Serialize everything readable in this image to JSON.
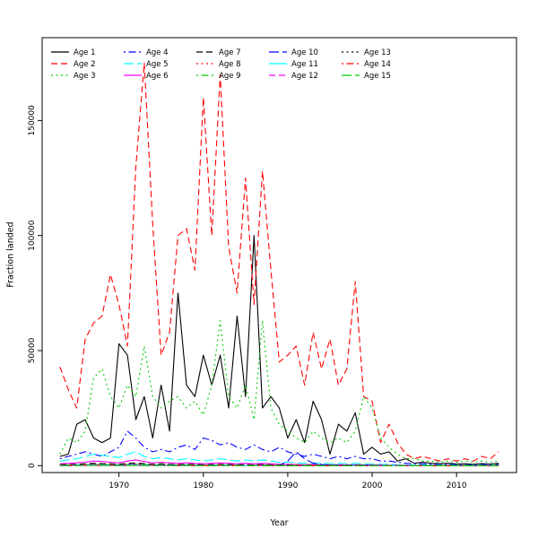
{
  "chart_data": {
    "type": "line",
    "xlabel": "Year",
    "ylabel": "Fraction landed",
    "xlim": [
      1960.9,
      2017.1
    ],
    "ylim": [
      -3000,
      186000
    ],
    "x_ticks": [
      1970,
      1980,
      1990,
      2000,
      2010
    ],
    "y_ticks": [
      0,
      50000,
      100000,
      150000
    ],
    "grid": false,
    "legend_position": "top-left",
    "legend_columns": 5,
    "x": [
      1963,
      1964,
      1965,
      1966,
      1967,
      1968,
      1969,
      1970,
      1971,
      1972,
      1973,
      1974,
      1975,
      1976,
      1977,
      1978,
      1979,
      1980,
      1981,
      1982,
      1983,
      1984,
      1985,
      1986,
      1987,
      1988,
      1989,
      1990,
      1991,
      1992,
      1993,
      1994,
      1995,
      1996,
      1997,
      1998,
      1999,
      2000,
      2001,
      2002,
      2003,
      2004,
      2005,
      2006,
      2007,
      2008,
      2009,
      2010,
      2011,
      2012,
      2013,
      2014,
      2015
    ],
    "series": [
      {
        "name": "Age 1",
        "color": "#000000",
        "linestyle": "solid",
        "values": [
          4000,
          5000,
          18000,
          20000,
          12000,
          10000,
          12000,
          53000,
          48000,
          20000,
          30000,
          12000,
          35000,
          15000,
          75000,
          35000,
          30000,
          48000,
          35000,
          48000,
          25000,
          65000,
          30000,
          100000,
          25000,
          30000,
          25000,
          12000,
          20000,
          10000,
          28000,
          20000,
          5000,
          18000,
          15000,
          23000,
          5000,
          8000,
          5000,
          6000,
          2000,
          3000,
          1000,
          1500,
          1000,
          800,
          1000,
          700,
          800,
          600,
          900,
          700,
          1000
        ]
      },
      {
        "name": "Age 2",
        "color": "#FF0000",
        "linestyle": "dashed",
        "values": [
          43000,
          33000,
          25000,
          55000,
          62000,
          65000,
          83000,
          70000,
          52000,
          130000,
          175000,
          105000,
          48000,
          58000,
          100000,
          103000,
          85000,
          160000,
          100000,
          170000,
          95000,
          75000,
          125000,
          70000,
          128000,
          85000,
          45000,
          48000,
          52000,
          35000,
          58000,
          42000,
          55000,
          35000,
          42000,
          80000,
          30000,
          28000,
          10000,
          18000,
          10000,
          5000,
          3000,
          4000,
          3000,
          2000,
          3000,
          2000,
          3000,
          2000,
          4000,
          3000,
          6000
        ]
      },
      {
        "name": "Age 3",
        "color": "#00CD00",
        "linestyle": "dotted",
        "values": [
          5000,
          12000,
          10000,
          15000,
          38000,
          42000,
          30000,
          25000,
          35000,
          30000,
          52000,
          30000,
          25000,
          28000,
          30000,
          25000,
          28000,
          22000,
          35000,
          63000,
          30000,
          25000,
          35000,
          20000,
          63000,
          25000,
          18000,
          15000,
          12000,
          10000,
          15000,
          12000,
          10000,
          12000,
          10000,
          15000,
          30000,
          25000,
          12000,
          8000,
          5000,
          3000,
          3000,
          2000,
          2000,
          1500,
          2000,
          1500,
          2000,
          1500,
          2000,
          1500,
          2000
        ]
      },
      {
        "name": "Age 4",
        "color": "#0000FF",
        "linestyle": "dotdash",
        "values": [
          3000,
          4000,
          5000,
          6000,
          5000,
          4000,
          6000,
          8000,
          15000,
          12000,
          8000,
          6000,
          7000,
          6000,
          8000,
          9000,
          7000,
          12000,
          11000,
          9000,
          10000,
          8000,
          7000,
          9000,
          7000,
          6000,
          8000,
          6000,
          5000,
          4000,
          5000,
          4000,
          3000,
          4000,
          3000,
          4000,
          3000,
          3000,
          2000,
          2000,
          1500,
          1000,
          800,
          800,
          600,
          600,
          500,
          500,
          400,
          400,
          500,
          400,
          500
        ]
      },
      {
        "name": "Age 5",
        "color": "#00FFFF",
        "linestyle": "longdash",
        "values": [
          2000,
          2500,
          3000,
          4000,
          5000,
          4500,
          4000,
          3500,
          5000,
          6000,
          4000,
          3000,
          3500,
          3000,
          2500,
          3000,
          2500,
          2000,
          2500,
          3000,
          2500,
          2000,
          2500,
          2000,
          2500,
          2000,
          1500,
          1500,
          1200,
          1000,
          1200,
          1000,
          800,
          1000,
          800,
          1000,
          800,
          700,
          600,
          500,
          400,
          350,
          300,
          300,
          250,
          250,
          200,
          200,
          200,
          200,
          200,
          200,
          200
        ]
      },
      {
        "name": "Age 6",
        "color": "#FF00FF",
        "linestyle": "solid",
        "values": [
          800,
          1000,
          1200,
          1500,
          2000,
          1800,
          1500,
          1200,
          2000,
          2500,
          1800,
          1200,
          1500,
          1200,
          1000,
          1200,
          1000,
          800,
          1000,
          1200,
          1000,
          800,
          1000,
          800,
          1000,
          800,
          600,
          600,
          500,
          400,
          500,
          400,
          350,
          400,
          350,
          400,
          350,
          300,
          250,
          200,
          180,
          150,
          130,
          130,
          110,
          110,
          100,
          100,
          90,
          90,
          90,
          90,
          90
        ]
      },
      {
        "name": "Age 7",
        "color": "#000000",
        "linestyle": "dashed",
        "values": [
          400,
          500,
          600,
          800,
          1000,
          900,
          800,
          600,
          1000,
          1200,
          900,
          600,
          800,
          600,
          500,
          600,
          500,
          400,
          500,
          600,
          500,
          400,
          500,
          400,
          500,
          400,
          300,
          300,
          250,
          200,
          250,
          200,
          180,
          200,
          180,
          200,
          180,
          150,
          130,
          100,
          90,
          80,
          70,
          70,
          60,
          60,
          50,
          50,
          50,
          50,
          50,
          50,
          50
        ]
      },
      {
        "name": "Age 8",
        "color": "#FF0000",
        "linestyle": "dotted",
        "values": [
          300,
          350,
          400,
          500,
          700,
          600,
          500,
          400,
          700,
          800,
          600,
          400,
          500,
          400,
          350,
          400,
          350,
          300,
          350,
          400,
          350,
          300,
          350,
          300,
          350,
          300,
          250,
          250,
          200,
          150,
          200,
          150,
          130,
          150,
          130,
          150,
          130,
          110,
          100,
          80,
          70,
          60,
          50,
          50,
          45,
          45,
          40,
          40,
          40,
          40,
          40,
          40,
          40
        ]
      },
      {
        "name": "Age 9",
        "color": "#00CD00",
        "linestyle": "dotdash",
        "values": [
          200,
          250,
          300,
          400,
          500,
          450,
          400,
          300,
          500,
          600,
          450,
          300,
          400,
          300,
          250,
          300,
          250,
          200,
          250,
          300,
          250,
          200,
          250,
          200,
          250,
          200,
          150,
          150,
          120,
          100,
          120,
          100,
          90,
          100,
          90,
          100,
          90,
          80,
          70,
          60,
          50,
          45,
          40,
          40,
          35,
          35,
          30,
          30,
          30,
          30,
          30,
          30,
          30
        ]
      },
      {
        "name": "Age 10",
        "color": "#0000FF",
        "linestyle": "longdash",
        "values": [
          150,
          200,
          250,
          300,
          400,
          350,
          300,
          250,
          400,
          450,
          350,
          250,
          300,
          250,
          200,
          250,
          200,
          150,
          200,
          250,
          200,
          150,
          200,
          150,
          200,
          150,
          120,
          2000,
          6000,
          3000,
          1000,
          500,
          300,
          250,
          200,
          250,
          200,
          150,
          120,
          100,
          80,
          70,
          60,
          60,
          50,
          50,
          40,
          40,
          40,
          40,
          40,
          40,
          40
        ]
      },
      {
        "name": "Age 11",
        "color": "#00FFFF",
        "linestyle": "solid",
        "values": [
          100,
          120,
          150,
          200,
          250,
          220,
          200,
          150,
          250,
          300,
          220,
          150,
          200,
          150,
          120,
          150,
          120,
          100,
          120,
          150,
          120,
          100,
          120,
          100,
          120,
          100,
          80,
          80,
          70,
          60,
          70,
          60,
          50,
          60,
          50,
          60,
          50,
          45,
          40,
          35,
          30,
          28,
          25,
          25,
          22,
          22,
          20,
          20,
          20,
          20,
          20,
          20,
          20
        ]
      },
      {
        "name": "Age 12",
        "color": "#FF00FF",
        "linestyle": "dashed",
        "values": [
          80,
          90,
          110,
          150,
          180,
          160,
          150,
          110,
          180,
          220,
          160,
          110,
          150,
          110,
          90,
          110,
          90,
          80,
          90,
          110,
          90,
          80,
          90,
          80,
          90,
          80,
          60,
          60,
          50,
          45,
          50,
          45,
          40,
          45,
          40,
          45,
          40,
          35,
          30,
          25,
          22,
          20,
          18,
          18,
          16,
          16,
          15,
          15,
          15,
          15,
          15,
          15,
          15
        ]
      },
      {
        "name": "Age 13",
        "color": "#000000",
        "linestyle": "dotted",
        "values": [
          60,
          70,
          80,
          110,
          130,
          120,
          110,
          80,
          130,
          160,
          120,
          80,
          110,
          80,
          70,
          80,
          70,
          60,
          70,
          80,
          70,
          60,
          70,
          60,
          70,
          60,
          45,
          45,
          40,
          35,
          40,
          35,
          30,
          35,
          30,
          35,
          30,
          25,
          22,
          18,
          16,
          15,
          13,
          13,
          12,
          12,
          10,
          10,
          10,
          10,
          10,
          10,
          10
        ]
      },
      {
        "name": "Age 14",
        "color": "#FF0000",
        "linestyle": "dotdash",
        "values": [
          40,
          50,
          60,
          80,
          100,
          90,
          80,
          60,
          100,
          120,
          90,
          60,
          80,
          60,
          50,
          60,
          50,
          40,
          50,
          60,
          50,
          40,
          50,
          40,
          50,
          40,
          30,
          30,
          28,
          25,
          28,
          25,
          22,
          25,
          22,
          25,
          22,
          18,
          16,
          13,
          12,
          10,
          9,
          9,
          8,
          8,
          7,
          7,
          7,
          7,
          7,
          7,
          7
        ]
      },
      {
        "name": "Age 15",
        "color": "#00CD00",
        "linestyle": "longdash",
        "values": [
          30,
          35,
          45,
          60,
          75,
          70,
          60,
          45,
          75,
          90,
          70,
          45,
          60,
          45,
          35,
          45,
          35,
          30,
          35,
          45,
          35,
          30,
          35,
          30,
          35,
          30,
          22,
          22,
          20,
          18,
          20,
          18,
          16,
          18,
          16,
          18,
          16,
          13,
          12,
          10,
          9,
          8,
          7,
          7,
          6,
          6,
          5,
          5,
          5,
          5,
          5,
          5,
          5
        ]
      }
    ]
  }
}
